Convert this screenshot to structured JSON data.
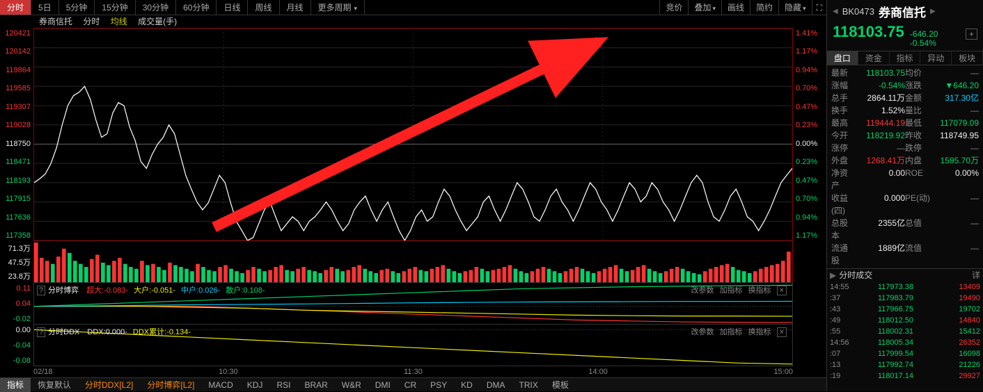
{
  "toptabs": [
    "分时",
    "5日",
    "5分钟",
    "15分钟",
    "30分钟",
    "60分钟",
    "日线",
    "周线",
    "月线",
    "更多周期"
  ],
  "toptab_active": 0,
  "rightbtns": [
    "竞价",
    "叠加",
    "画线",
    "简约",
    "隐藏"
  ],
  "legend": {
    "name": "券商信托",
    "type": "分时",
    "ma": "均线",
    "vol": "成交量(手)"
  },
  "chart": {
    "data": [
      118193,
      118250,
      118320,
      118471,
      118700,
      119028,
      119307,
      119450,
      119500,
      119585,
      119400,
      119100,
      118850,
      118900,
      119200,
      119350,
      119307,
      119000,
      118800,
      118500,
      118400,
      118600,
      118750,
      118850,
      119028,
      118900,
      118600,
      118300,
      118100,
      117915,
      117800,
      117900,
      118100,
      118300,
      118193,
      117900,
      117636,
      117500,
      117358,
      117400,
      117600,
      117800,
      117915,
      117700,
      117500,
      117600,
      117700,
      117636,
      117500,
      117636,
      117700,
      117800,
      117915,
      117800,
      117636,
      117500,
      117600,
      117800,
      117915,
      118000,
      117800,
      117636,
      117800,
      117915,
      117700,
      117500,
      117358,
      117500,
      117700,
      117800,
      117636,
      117700,
      117915,
      118100,
      118000,
      117800,
      117636,
      117500,
      117600,
      117700,
      117915,
      118000,
      117800,
      117636,
      117800,
      118000,
      118193,
      118100,
      117915,
      117700,
      117636,
      117800,
      118000,
      118100,
      117915,
      117800,
      117636,
      117800,
      118000,
      118193,
      118100,
      117915,
      117800,
      117636,
      117800,
      118000,
      118193,
      118100,
      117915,
      118000,
      118193,
      118100,
      117915,
      117800,
      117636,
      117800,
      118000,
      118193,
      118300,
      118193,
      117915,
      117700,
      117636,
      117800,
      118000,
      118100,
      117915,
      117700,
      117636,
      117500,
      117636,
      117800,
      118000,
      118193,
      118300,
      118400
    ],
    "baseline": 118750,
    "left_labels": [
      "120421",
      "120142",
      "119864",
      "119585",
      "119307",
      "119028",
      "118750",
      "118471",
      "118193",
      "117915",
      "117636",
      "117358"
    ],
    "left_colors": [
      "up",
      "up",
      "up",
      "up",
      "up",
      "up",
      "wh",
      "dn",
      "dn",
      "dn",
      "dn",
      "dn"
    ],
    "right_labels": [
      "1.41%",
      "1.17%",
      "0.94%",
      "0.70%",
      "0.47%",
      "0.23%",
      "0.00%",
      "0.23%",
      "0.47%",
      "0.70%",
      "0.94%",
      "1.17%"
    ],
    "right_colors": [
      "up",
      "up",
      "up",
      "up",
      "up",
      "up",
      "wh",
      "dn",
      "dn",
      "dn",
      "dn",
      "dn"
    ],
    "line_color": "#ffffff",
    "grid_color": "#222222",
    "border_color": "#8b0000"
  },
  "volume": {
    "labels": [
      "71.3万",
      "47.5万",
      "23.8万"
    ],
    "bars": [
      65,
      40,
      35,
      30,
      42,
      55,
      48,
      35,
      30,
      25,
      38,
      45,
      32,
      28,
      35,
      40,
      30,
      25,
      22,
      35,
      28,
      30,
      25,
      20,
      32,
      28,
      25,
      22,
      18,
      30,
      25,
      20,
      18,
      25,
      28,
      22,
      18,
      15,
      20,
      25,
      22,
      18,
      20,
      25,
      28,
      20,
      18,
      22,
      25,
      20,
      18,
      15,
      20,
      25,
      22,
      18,
      20,
      25,
      28,
      22,
      18,
      15,
      20,
      22,
      18,
      15,
      18,
      22,
      25,
      20,
      18,
      22,
      25,
      28,
      22,
      18,
      15,
      18,
      20,
      25,
      22,
      18,
      20,
      22,
      25,
      28,
      22,
      18,
      15,
      18,
      22,
      25,
      22,
      18,
      15,
      18,
      22,
      25,
      22,
      18,
      15,
      18,
      22,
      25,
      28,
      22,
      18,
      20,
      25,
      28,
      22,
      18,
      15,
      18,
      22,
      25,
      22,
      18,
      15,
      13,
      18,
      22,
      25,
      28,
      30,
      25,
      20,
      18,
      15,
      18,
      22,
      25,
      28,
      30,
      35,
      50
    ],
    "colors": [
      "u",
      "u",
      "u",
      "d",
      "u",
      "u",
      "d",
      "d",
      "d",
      "d",
      "u",
      "u",
      "d",
      "d",
      "u",
      "u",
      "d",
      "d",
      "d",
      "u",
      "d",
      "u",
      "d",
      "d",
      "u",
      "d",
      "d",
      "d",
      "d",
      "u",
      "d",
      "d",
      "d",
      "u",
      "u",
      "d",
      "d",
      "d",
      "u",
      "u",
      "d",
      "d",
      "u",
      "u",
      "u",
      "d",
      "d",
      "u",
      "u",
      "d",
      "d",
      "d",
      "u",
      "u",
      "d",
      "d",
      "u",
      "u",
      "u",
      "d",
      "d",
      "d",
      "u",
      "u",
      "d",
      "d",
      "u",
      "u",
      "u",
      "d",
      "d",
      "u",
      "u",
      "u",
      "d",
      "d",
      "d",
      "u",
      "u",
      "u",
      "d",
      "d",
      "u",
      "u",
      "u",
      "u",
      "d",
      "d",
      "d",
      "u",
      "u",
      "u",
      "d",
      "d",
      "d",
      "u",
      "u",
      "u",
      "d",
      "d",
      "d",
      "u",
      "u",
      "u",
      "u",
      "d",
      "d",
      "u",
      "u",
      "u",
      "d",
      "d",
      "d",
      "u",
      "u",
      "u",
      "d",
      "d",
      "d",
      "d",
      "u",
      "u",
      "u",
      "u",
      "u",
      "d",
      "d",
      "d",
      "d",
      "u",
      "u",
      "u",
      "u",
      "u",
      "u",
      "u"
    ]
  },
  "ind1": {
    "name": "分时博弈",
    "vals": [
      {
        "l": "超大",
        "v": "-0.083",
        "c": "up"
      },
      {
        "l": "大户",
        "v": "-0.051",
        "c": "yl"
      },
      {
        "l": "中户",
        "v": "0.026",
        "c": "cy"
      },
      {
        "l": "散户",
        "v": "0.108",
        "c": "dn"
      }
    ],
    "ylabels": [
      "0.11",
      "0.04",
      "-0.02"
    ],
    "ycolors": [
      "up",
      "up",
      "dn"
    ],
    "lines": [
      {
        "c": "#ff3333",
        "d": [
          0,
          0,
          0,
          0,
          -0.01,
          -0.02,
          -0.03,
          -0.04,
          -0.05,
          -0.06,
          -0.07,
          -0.075,
          -0.08,
          -0.082,
          -0.083
        ]
      },
      {
        "c": "#eeee00",
        "d": [
          0,
          0,
          0,
          -0.005,
          -0.01,
          -0.02,
          -0.025,
          -0.03,
          -0.035,
          -0.04,
          -0.045,
          -0.048,
          -0.05,
          -0.05,
          -0.051
        ]
      },
      {
        "c": "#00d0ff",
        "d": [
          0,
          0.002,
          0.005,
          0.008,
          0.01,
          0.012,
          0.015,
          0.018,
          0.02,
          0.022,
          0.023,
          0.024,
          0.025,
          0.025,
          0.026
        ]
      },
      {
        "c": "#00d26a",
        "d": [
          0,
          0.01,
          0.02,
          0.03,
          0.04,
          0.05,
          0.06,
          0.07,
          0.08,
          0.09,
          0.095,
          0.1,
          0.103,
          0.106,
          0.108
        ]
      }
    ],
    "ymin": -0.09,
    "ymax": 0.12
  },
  "ind2": {
    "name": "分时DDX",
    "vals": [
      {
        "l": "DDX",
        "v": "0.000",
        "c": "wh"
      },
      {
        "l": "DDX累计",
        "v": "-0.134",
        "c": "yl"
      }
    ],
    "ylabels": [
      "0.00",
      "-0.04",
      "-0.08"
    ],
    "ycolors": [
      "wh",
      "dn",
      "dn"
    ],
    "lines": [
      {
        "c": "#eeee00",
        "d": [
          0,
          -0.01,
          -0.02,
          -0.03,
          -0.04,
          -0.05,
          -0.06,
          -0.07,
          -0.08,
          -0.09,
          -0.1,
          -0.11,
          -0.12,
          -0.13,
          -0.134
        ]
      }
    ],
    "ymin": -0.14,
    "ymax": 0.02
  },
  "indctl": [
    "改参数",
    "加指标",
    "换指标"
  ],
  "xaxis": [
    "02/18",
    "10:30",
    "11:30",
    "14:00",
    "15:00"
  ],
  "bottombar": [
    "指标",
    "恢复默认",
    "分时DDX[L2]",
    "分时博弈[L2]",
    "MACD",
    "KDJ",
    "RSI",
    "BRAR",
    "W&R",
    "DMI",
    "CR",
    "PSY",
    "KD",
    "DMA",
    "TRIX",
    "模板"
  ],
  "bottom_active": 0,
  "bottom_hl": [
    2,
    3
  ],
  "side": {
    "code": "BK0473",
    "name": "券商信托",
    "price": "118103.75",
    "price_color": "dn",
    "chg": "-646.20",
    "chg_pct": "-0.54%",
    "chg_color": "dn",
    "tabs": [
      "盘口",
      "资金",
      "指标",
      "异动",
      "板块"
    ],
    "tab_active": 0,
    "stats": [
      [
        {
          "l": "最新",
          "v": "118103.75",
          "c": "dn"
        },
        {
          "l": "均价",
          "v": "—",
          "c": "gr"
        }
      ],
      [
        {
          "l": "涨幅",
          "v": "-0.54%",
          "c": "dn"
        },
        {
          "l": "涨跌",
          "v": "▼646.20",
          "c": "dn"
        }
      ],
      [
        {
          "l": "总手",
          "v": "2864.11万",
          "c": "wh"
        },
        {
          "l": "金额",
          "v": "317.30亿",
          "c": "cy"
        }
      ],
      [
        {
          "l": "换手",
          "v": "1.52%",
          "c": "wh"
        },
        {
          "l": "量比",
          "v": "—",
          "c": "gr"
        }
      ],
      [
        {
          "l": "最高",
          "v": "119444.19",
          "c": "up"
        },
        {
          "l": "最低",
          "v": "117079.09",
          "c": "dn"
        }
      ],
      [
        {
          "l": "今开",
          "v": "118219.92",
          "c": "dn"
        },
        {
          "l": "昨收",
          "v": "118749.95",
          "c": "wh"
        }
      ],
      [
        {
          "l": "涨停",
          "v": "—",
          "c": "gr"
        },
        {
          "l": "跌停",
          "v": "—",
          "c": "gr"
        }
      ],
      [
        {
          "l": "外盘",
          "v": "1268.41万",
          "c": "up"
        },
        {
          "l": "内盘",
          "v": "1595.70万",
          "c": "dn"
        }
      ],
      [
        {
          "l": "净资产",
          "v": "0.00",
          "c": "wh"
        },
        {
          "l": "ROE",
          "v": "0.00%",
          "c": "wh"
        }
      ],
      [
        {
          "l": "收益(四)",
          "v": "0.000",
          "c": "wh"
        },
        {
          "l": "PE(动)",
          "v": "—",
          "c": "gr"
        }
      ],
      [
        {
          "l": "总股本",
          "v": "2355亿",
          "c": "wh"
        },
        {
          "l": "总值",
          "v": "—",
          "c": "gr"
        }
      ],
      [
        {
          "l": "流通股",
          "v": "1889亿",
          "c": "wh"
        },
        {
          "l": "流值",
          "v": "—",
          "c": "gr"
        }
      ]
    ],
    "ticks_title": "分时成交",
    "ticks_detail": "详",
    "ticks": [
      {
        "t": "14:55",
        "p": "117973.38",
        "v": "13409",
        "pc": "dn",
        "vc": "up"
      },
      {
        "t": ":37",
        "p": "117983.79",
        "v": "19490",
        "pc": "dn",
        "vc": "up"
      },
      {
        "t": ":43",
        "p": "117966.75",
        "v": "19702",
        "pc": "dn",
        "vc": "dn"
      },
      {
        "t": ":49",
        "p": "118012.50",
        "v": "14840",
        "pc": "dn",
        "vc": "up"
      },
      {
        "t": ":55",
        "p": "118002.31",
        "v": "15412",
        "pc": "dn",
        "vc": "dn"
      },
      {
        "t": "14:56",
        "p": "118005.34",
        "v": "26352",
        "pc": "dn",
        "vc": "up"
      },
      {
        "t": ":07",
        "p": "117999.54",
        "v": "16098",
        "pc": "dn",
        "vc": "dn"
      },
      {
        "t": ":13",
        "p": "117992.74",
        "v": "21226",
        "pc": "dn",
        "vc": "dn"
      },
      {
        "t": ":19",
        "p": "118017.14",
        "v": "29927",
        "pc": "dn",
        "vc": "up"
      }
    ]
  }
}
